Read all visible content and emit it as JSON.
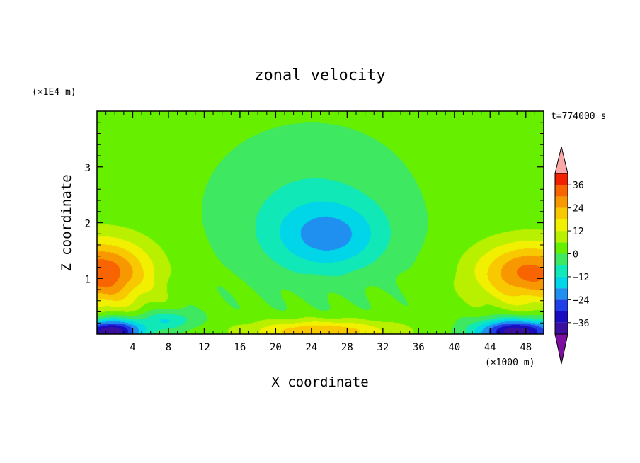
{
  "chart_data": {
    "type": "heatmap",
    "title": "zonal velocity",
    "xlabel": "X coordinate",
    "ylabel": "Z coordinate",
    "x_unit": "(×1000 m)",
    "y_unit": "(×1E4 m)",
    "annotation": "t=774000 s",
    "xlim": [
      0,
      50
    ],
    "ylim": [
      0,
      4
    ],
    "x_ticks": [
      4,
      8,
      12,
      16,
      20,
      24,
      28,
      32,
      36,
      40,
      44,
      48
    ],
    "x_tick_labels": [
      "4",
      "8",
      "12",
      "16",
      "20",
      "24",
      "28",
      "32",
      "36",
      "40",
      "44",
      "48"
    ],
    "y_ticks": [
      1,
      2,
      3
    ],
    "y_tick_labels": [
      "1",
      "2",
      "3"
    ],
    "colorbar": {
      "levels": [
        -42,
        -36,
        -30,
        -24,
        -18,
        -12,
        -6,
        0,
        6,
        12,
        18,
        24,
        30,
        36,
        42
      ],
      "tick_values": [
        36,
        24,
        12,
        0,
        -12,
        -24,
        -36
      ],
      "tick_labels": [
        "36",
        "24",
        "12",
        "0",
        "−12",
        "−24",
        "−36"
      ],
      "colors": [
        "#7a0fa0",
        "#3b10a0",
        "#1a0dc0",
        "#1f3fe8",
        "#1f8ff0",
        "#00d6e8",
        "#10e8b8",
        "#3ee860",
        "#66f000",
        "#b8f000",
        "#f0f000",
        "#f8c800",
        "#f89800",
        "#f86400",
        "#f02000",
        "#f8a8a8"
      ]
    },
    "features": [
      {
        "x": 0.5,
        "z": 1.1,
        "value": 33,
        "sx": 5.5,
        "sz": 0.6
      },
      {
        "x": 48.5,
        "z": 1.1,
        "value": 30,
        "sx": 6.0,
        "sz": 0.55
      },
      {
        "x": 1.5,
        "z": 0.05,
        "value": -45,
        "sx": 3.5,
        "sz": 0.22
      },
      {
        "x": 47.0,
        "z": 0.05,
        "value": -43,
        "sx": 4.5,
        "sz": 0.22
      },
      {
        "x": 25.0,
        "z": 0.05,
        "value": 22,
        "sx": 8.0,
        "sz": 0.2
      },
      {
        "x": 26.0,
        "z": 1.75,
        "value": -16,
        "sx": 6.0,
        "sz": 0.6
      },
      {
        "x": 24.0,
        "z": 2.2,
        "value": -9,
        "sx": 10.0,
        "sz": 1.3
      },
      {
        "x": 8.0,
        "z": 0.25,
        "value": -14,
        "sx": 3.0,
        "sz": 0.18
      }
    ]
  }
}
